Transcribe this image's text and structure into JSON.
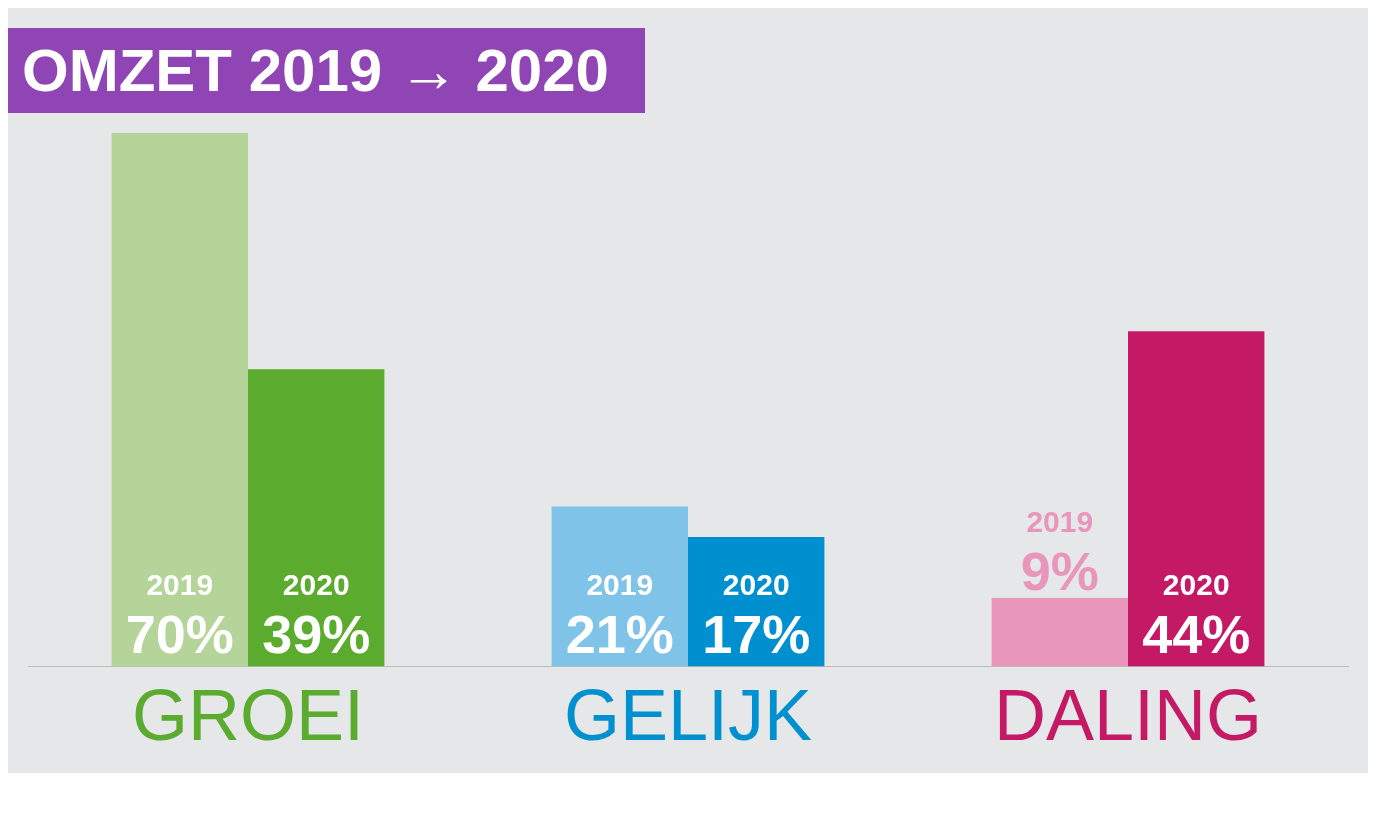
{
  "chart_data": {
    "type": "bar",
    "title": "OMZET 2019 → 2020",
    "categories": [
      "GROEI",
      "GELIJK",
      "DALING"
    ],
    "series": [
      {
        "name": "2019",
        "colors": [
          "#b5d49a",
          "#7fc4e8",
          "#e896bb"
        ],
        "values": [
          70,
          21,
          9
        ],
        "value_labels": [
          "70%",
          "21%",
          "9%"
        ]
      },
      {
        "name": "2020",
        "colors": [
          "#5aab2e",
          "#0090cf",
          "#c41a66"
        ],
        "values": [
          39,
          17,
          44
        ],
        "value_labels": [
          "39%",
          "17%",
          "44%"
        ]
      }
    ],
    "grid": false,
    "legend": false
  }
}
